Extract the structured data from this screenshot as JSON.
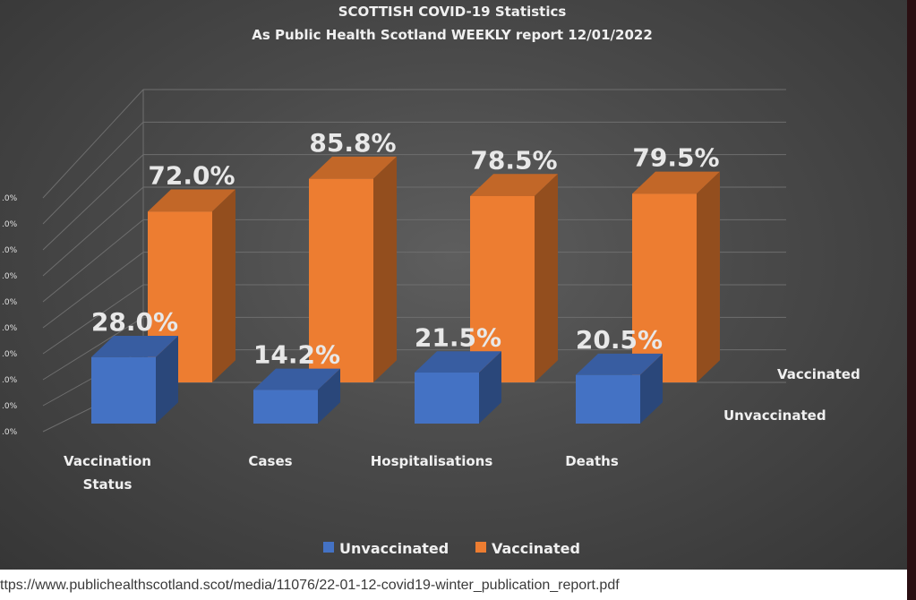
{
  "chart_data": {
    "type": "bar",
    "title": "SCOTTISH COVID-19 Statistics",
    "subtitle": "As Public Health Scotland WEEKLY report 12/01/2022",
    "categories": [
      "Vaccination Status",
      "Cases",
      "Hospitalisations",
      "Deaths"
    ],
    "series": [
      {
        "name": "Unvaccinated",
        "values": [
          28.0,
          14.2,
          21.5,
          20.5
        ],
        "labels": [
          "28.0%",
          "14.2%",
          "21.5%",
          "20.5%"
        ],
        "color": "#4472c4"
      },
      {
        "name": "Vaccinated",
        "values": [
          72.0,
          85.8,
          78.5,
          79.5
        ],
        "labels": [
          "72.0%",
          "85.8%",
          "78.5%",
          "79.5%"
        ],
        "color": "#ed7d31"
      }
    ],
    "ylim": [
      0,
      100
    ],
    "y_ticks": [
      ".0%",
      ".0%",
      ".0%",
      ".0%",
      ".0%",
      ".0%",
      ".0%",
      ".0%",
      ".0%",
      ".0%"
    ],
    "grid": true,
    "legend_position": "bottom",
    "three_d": true
  },
  "source_url": "ttps://www.publichealthscotland.scot/media/11076/22-01-12-covid19-winter_publication_report.pdf"
}
